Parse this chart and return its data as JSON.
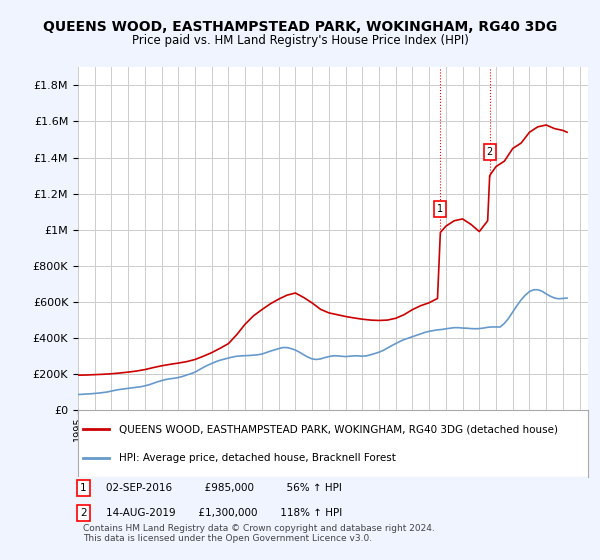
{
  "title": "QUEENS WOOD, EASTHAMPSTEAD PARK, WOKINGHAM, RG40 3DG",
  "subtitle": "Price paid vs. HM Land Registry's House Price Index (HPI)",
  "ylabel_ticks": [
    "£0",
    "£200K",
    "£400K",
    "£600K",
    "£800K",
    "£1M",
    "£1.2M",
    "£1.4M",
    "£1.6M",
    "£1.8M"
  ],
  "ytick_values": [
    0,
    200000,
    400000,
    600000,
    800000,
    1000000,
    1200000,
    1400000,
    1600000,
    1800000
  ],
  "ylim": [
    0,
    1900000
  ],
  "xlim_start": 1995.0,
  "xlim_end": 2025.5,
  "background_color": "#f0f4ff",
  "plot_bg_color": "#ffffff",
  "grid_color": "#cccccc",
  "red_color": "#cc0000",
  "blue_color": "#6699cc",
  "legend_label_red": "QUEENS WOOD, EASTHAMPSTEAD PARK, WOKINGHAM, RG40 3DG (detached house)",
  "legend_label_blue": "HPI: Average price, detached house, Bracknell Forest",
  "sale1_label": "1",
  "sale1_date": "02-SEP-2016",
  "sale1_price": "£985,000",
  "sale1_hpi": "56% ↑ HPI",
  "sale1_x": 2016.67,
  "sale1_y": 985000,
  "sale2_label": "2",
  "sale2_date": "14-AUG-2019",
  "sale2_price": "£1,300,000",
  "sale2_hpi": "118% ↑ HPI",
  "sale2_x": 2019.62,
  "sale2_y": 1300000,
  "footnote": "Contains HM Land Registry data © Crown copyright and database right 2024.\nThis data is licensed under the Open Government Licence v3.0.",
  "hpi_years": [
    1995.0,
    1995.25,
    1995.5,
    1995.75,
    1996.0,
    1996.25,
    1996.5,
    1996.75,
    1997.0,
    1997.25,
    1997.5,
    1997.75,
    1998.0,
    1998.25,
    1998.5,
    1998.75,
    1999.0,
    1999.25,
    1999.5,
    1999.75,
    2000.0,
    2000.25,
    2000.5,
    2000.75,
    2001.0,
    2001.25,
    2001.5,
    2001.75,
    2002.0,
    2002.25,
    2002.5,
    2002.75,
    2003.0,
    2003.25,
    2003.5,
    2003.75,
    2004.0,
    2004.25,
    2004.5,
    2004.75,
    2005.0,
    2005.25,
    2005.5,
    2005.75,
    2006.0,
    2006.25,
    2006.5,
    2006.75,
    2007.0,
    2007.25,
    2007.5,
    2007.75,
    2008.0,
    2008.25,
    2008.5,
    2008.75,
    2009.0,
    2009.25,
    2009.5,
    2009.75,
    2010.0,
    2010.25,
    2010.5,
    2010.75,
    2011.0,
    2011.25,
    2011.5,
    2011.75,
    2012.0,
    2012.25,
    2012.5,
    2012.75,
    2013.0,
    2013.25,
    2013.5,
    2013.75,
    2014.0,
    2014.25,
    2014.5,
    2014.75,
    2015.0,
    2015.25,
    2015.5,
    2015.75,
    2016.0,
    2016.25,
    2016.5,
    2016.75,
    2017.0,
    2017.25,
    2017.5,
    2017.75,
    2018.0,
    2018.25,
    2018.5,
    2018.75,
    2019.0,
    2019.25,
    2019.5,
    2019.75,
    2020.0,
    2020.25,
    2020.5,
    2020.75,
    2021.0,
    2021.25,
    2021.5,
    2021.75,
    2022.0,
    2022.25,
    2022.5,
    2022.75,
    2023.0,
    2023.25,
    2023.5,
    2023.75,
    2024.0,
    2024.25
  ],
  "hpi_values": [
    88000,
    89000,
    91000,
    92000,
    94000,
    96000,
    99000,
    102000,
    107000,
    112000,
    116000,
    119000,
    122000,
    125000,
    128000,
    131000,
    136000,
    142000,
    150000,
    158000,
    165000,
    171000,
    175000,
    178000,
    182000,
    188000,
    196000,
    203000,
    212000,
    225000,
    238000,
    250000,
    260000,
    270000,
    278000,
    284000,
    290000,
    296000,
    300000,
    302000,
    303000,
    304000,
    306000,
    308000,
    312000,
    320000,
    328000,
    335000,
    342000,
    348000,
    348000,
    342000,
    334000,
    322000,
    308000,
    295000,
    285000,
    282000,
    285000,
    292000,
    298000,
    302000,
    302000,
    300000,
    298000,
    300000,
    302000,
    302000,
    300000,
    302000,
    308000,
    315000,
    322000,
    332000,
    345000,
    358000,
    370000,
    382000,
    392000,
    400000,
    408000,
    416000,
    424000,
    432000,
    438000,
    442000,
    446000,
    448000,
    452000,
    455000,
    458000,
    458000,
    456000,
    455000,
    453000,
    452000,
    453000,
    456000,
    460000,
    462000,
    462000,
    462000,
    482000,
    510000,
    545000,
    580000,
    612000,
    638000,
    658000,
    668000,
    668000,
    660000,
    645000,
    632000,
    622000,
    618000,
    620000,
    622000
  ],
  "red_years": [
    1995.0,
    1995.5,
    1996.0,
    1996.5,
    1997.0,
    1997.5,
    1998.0,
    1998.5,
    1999.0,
    1999.5,
    2000.0,
    2000.5,
    2001.0,
    2001.5,
    2002.0,
    2002.5,
    2003.0,
    2003.5,
    2004.0,
    2004.5,
    2005.0,
    2005.5,
    2006.0,
    2006.5,
    2007.0,
    2007.5,
    2008.0,
    2008.5,
    2009.0,
    2009.5,
    2010.0,
    2010.5,
    2011.0,
    2011.5,
    2012.0,
    2012.5,
    2013.0,
    2013.5,
    2014.0,
    2014.5,
    2015.0,
    2015.5,
    2016.0,
    2016.5,
    2016.67,
    2017.0,
    2017.5,
    2018.0,
    2018.5,
    2019.0,
    2019.5,
    2019.62,
    2020.0,
    2020.5,
    2021.0,
    2021.5,
    2022.0,
    2022.5,
    2023.0,
    2023.5,
    2024.0,
    2024.25
  ],
  "red_values": [
    195000,
    196000,
    198000,
    200000,
    203000,
    207000,
    212000,
    218000,
    226000,
    237000,
    247000,
    255000,
    262000,
    270000,
    282000,
    300000,
    320000,
    344000,
    370000,
    420000,
    478000,
    524000,
    558000,
    590000,
    616000,
    638000,
    650000,
    625000,
    595000,
    560000,
    540000,
    530000,
    520000,
    512000,
    505000,
    500000,
    498000,
    500000,
    510000,
    530000,
    558000,
    580000,
    596000,
    620000,
    985000,
    1020000,
    1050000,
    1060000,
    1030000,
    990000,
    1050000,
    1300000,
    1350000,
    1380000,
    1450000,
    1480000,
    1540000,
    1570000,
    1580000,
    1560000,
    1550000,
    1540000
  ]
}
